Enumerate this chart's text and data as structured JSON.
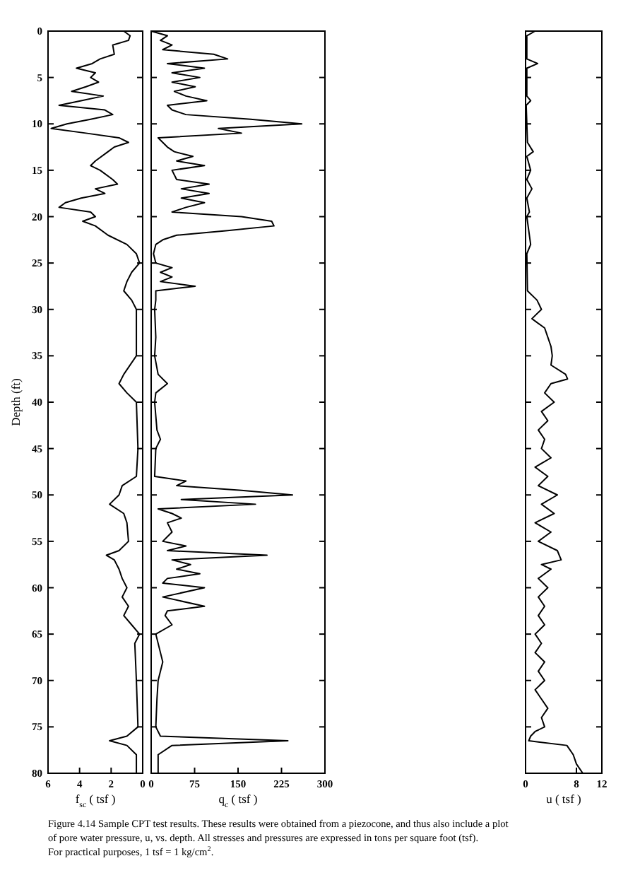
{
  "chart_data": [
    {
      "type": "line",
      "orientation": "horizontal",
      "ylabel": "Depth (ft)",
      "xlabel": "f$_{sc}$ ( tsf )",
      "xlim": [
        6,
        0
      ],
      "xticks": [
        6,
        4,
        2,
        0
      ],
      "ylim": [
        80,
        0
      ],
      "yticks": [
        0,
        5,
        10,
        15,
        20,
        25,
        30,
        35,
        40,
        45,
        50,
        55,
        60,
        65,
        70,
        75,
        80
      ],
      "tick_labels": "xy",
      "marker": "none",
      "line_style": "solid",
      "grid": false,
      "annotations": [
        "Figure 4.14 Sample CPT test results. These results were obtained from a piezocone, and thus also include a plot of pore water pressure, u, vs. depth. All stresses and pressures are expressed in tons per square foot (tsf). For practical purposes, 1 tsf = 1 kg/cm$^{2}$."
      ],
      "series": [
        {
          "color": "#000000",
          "x": [
            0,
            0.5,
            1,
            1.5,
            2.5,
            3,
            3.5,
            4,
            4.5,
            5,
            5.5,
            6,
            6.5,
            7,
            7.5,
            8,
            8.5,
            9,
            9.5,
            10,
            10.5,
            11,
            11.5,
            12,
            12.5,
            13,
            14,
            14.5,
            15,
            16,
            16.5,
            17,
            17.5,
            18,
            18.5,
            19,
            19.5,
            20,
            20.5,
            21,
            22,
            23,
            24,
            25,
            26,
            27,
            28,
            29,
            30,
            35,
            37,
            38,
            39,
            40,
            45,
            48,
            49,
            50,
            51,
            52,
            53,
            55,
            56,
            56.5,
            57,
            58,
            59,
            60,
            61,
            62,
            63,
            64,
            65,
            66,
            70,
            75,
            76,
            76.5,
            77,
            78,
            80
          ],
          "values": [
            1.2,
            0.8,
            0.9,
            1.9,
            1.8,
            2.7,
            3.2,
            4.2,
            3.0,
            3.3,
            2.8,
            3.6,
            4.5,
            2.5,
            3.9,
            5.3,
            2.4,
            1.9,
            3.3,
            4.8,
            5.8,
            3.6,
            1.5,
            0.9,
            1.8,
            2.2,
            3.0,
            3.3,
            2.7,
            1.9,
            1.6,
            3.0,
            2.4,
            3.9,
            4.9,
            5.3,
            3.3,
            3.0,
            3.8,
            3.0,
            2.2,
            1.0,
            0.4,
            0.2,
            0.7,
            1.0,
            1.2,
            0.7,
            0.4,
            0.4,
            1.2,
            1.5,
            1.0,
            0.4,
            0.3,
            0.4,
            1.3,
            1.5,
            2.1,
            1.2,
            1.0,
            0.9,
            1.5,
            2.3,
            1.8,
            1.5,
            1.3,
            1.0,
            1.3,
            0.9,
            1.2,
            0.7,
            0.2,
            0.5,
            0.4,
            0.3,
            1.0,
            2.1,
            1.0,
            0.4,
            0.4
          ]
        }
      ]
    },
    {
      "type": "line",
      "orientation": "horizontal",
      "xlabel": "q$_{c}$ ( tsf )",
      "xlim": [
        0,
        300
      ],
      "xticks": [
        0,
        75,
        150,
        225,
        300
      ],
      "ylim": [
        80,
        0
      ],
      "yticks": [
        0,
        5,
        10,
        15,
        20,
        25,
        30,
        35,
        40,
        45,
        50,
        55,
        60,
        65,
        70,
        75,
        80
      ],
      "tick_labels": "x",
      "marker": "none",
      "line_style": "solid",
      "grid": false,
      "series": [
        {
          "color": "#000000",
          "x": [
            0,
            0.5,
            1,
            1.5,
            2,
            2.5,
            3,
            3.5,
            4,
            4.5,
            5,
            5.5,
            6,
            6.5,
            7,
            7.5,
            8,
            8.5,
            9,
            9.5,
            10,
            10.5,
            11,
            11.5,
            12,
            12.5,
            13,
            13.5,
            14,
            14.5,
            15,
            16,
            16.5,
            17,
            17.5,
            18,
            18.5,
            19,
            19.5,
            20,
            20.5,
            21,
            21.5,
            22,
            22.5,
            23,
            24,
            25,
            25.5,
            26,
            26.5,
            27,
            27.5,
            28,
            29,
            30,
            33,
            35,
            37,
            38,
            39,
            40,
            43,
            44,
            45,
            48,
            48.5,
            49,
            49.5,
            50,
            50.5,
            51,
            51.5,
            52,
            52.5,
            53,
            54,
            55,
            55.5,
            56,
            56.5,
            57,
            57.5,
            58,
            58.5,
            59,
            59.5,
            60,
            61,
            62,
            62.5,
            63,
            64,
            65,
            67,
            68,
            70,
            72,
            75,
            76,
            76.5,
            77,
            78,
            80
          ],
          "values": [
            0,
            28,
            16,
            36,
            20,
            108,
            132,
            28,
            92,
            36,
            84,
            36,
            76,
            40,
            60,
            96,
            28,
            36,
            60,
            172,
            260,
            116,
            156,
            12,
            20,
            28,
            40,
            72,
            44,
            92,
            36,
            44,
            100,
            52,
            100,
            52,
            92,
            60,
            36,
            156,
            208,
            212,
            132,
            44,
            20,
            8,
            4,
            8,
            36,
            16,
            36,
            16,
            76,
            8,
            8,
            6,
            8,
            6,
            12,
            28,
            8,
            6,
            10,
            16,
            8,
            6,
            60,
            44,
            156,
            244,
            52,
            180,
            12,
            36,
            52,
            28,
            36,
            20,
            60,
            28,
            200,
            36,
            68,
            44,
            84,
            28,
            20,
            92,
            20,
            92,
            28,
            24,
            36,
            8,
            16,
            20,
            12,
            10,
            8,
            16,
            236,
            36,
            12,
            12
          ]
        }
      ]
    },
    {
      "type": "line",
      "orientation": "horizontal",
      "xlabel": "u ( tsf )",
      "xlim": [
        0,
        12
      ],
      "xticks": [
        0,
        8,
        12
      ],
      "ylim": [
        80,
        0
      ],
      "yticks": [
        0,
        5,
        10,
        15,
        20,
        25,
        30,
        35,
        40,
        45,
        50,
        55,
        60,
        65,
        70,
        75,
        80
      ],
      "tick_labels": "x",
      "marker": "none",
      "line_style": "solid",
      "grid": false,
      "series": [
        {
          "color": "#000000",
          "x": [
            0,
            0.5,
            3,
            3.5,
            4,
            7,
            7.5,
            8,
            12,
            13,
            13.5,
            15,
            16,
            17,
            18,
            19.5,
            20,
            23,
            24,
            28,
            29,
            30,
            31,
            32,
            33,
            34,
            35,
            36,
            37,
            37.5,
            38,
            39,
            40,
            41,
            42,
            43,
            44,
            45,
            46,
            47,
            48,
            49,
            50,
            51,
            52,
            53,
            54,
            55,
            56,
            57,
            57.5,
            58,
            59,
            60,
            61,
            62,
            63,
            64,
            65,
            66,
            67,
            68,
            69,
            70,
            71,
            72,
            73,
            74,
            75,
            75.5,
            76,
            76.5,
            77,
            78,
            79,
            80
          ],
          "values": [
            1.5,
            0.2,
            0.2,
            1.9,
            0.2,
            0.2,
            0.8,
            0.1,
            0.3,
            1.2,
            0.2,
            0.8,
            0.2,
            1.0,
            0.2,
            0.6,
            0.2,
            0.8,
            0.2,
            0.3,
            1.8,
            2.5,
            1.0,
            3.0,
            3.5,
            4.0,
            4.2,
            4.0,
            6.3,
            6.6,
            4.0,
            3.0,
            4.5,
            2.5,
            3.5,
            2.0,
            3.0,
            2.5,
            4.0,
            1.5,
            3.5,
            2.0,
            5.0,
            2.5,
            4.5,
            1.5,
            4.0,
            2.0,
            5.0,
            5.6,
            2.5,
            4.0,
            2.0,
            3.5,
            2.0,
            3.0,
            2.0,
            3.0,
            1.5,
            2.5,
            1.5,
            3.0,
            2.0,
            3.0,
            1.5,
            2.5,
            3.5,
            2.5,
            3.0,
            1.5,
            0.8,
            0.5,
            6.5,
            7.5,
            8.0,
            9.0
          ]
        }
      ]
    }
  ]
}
